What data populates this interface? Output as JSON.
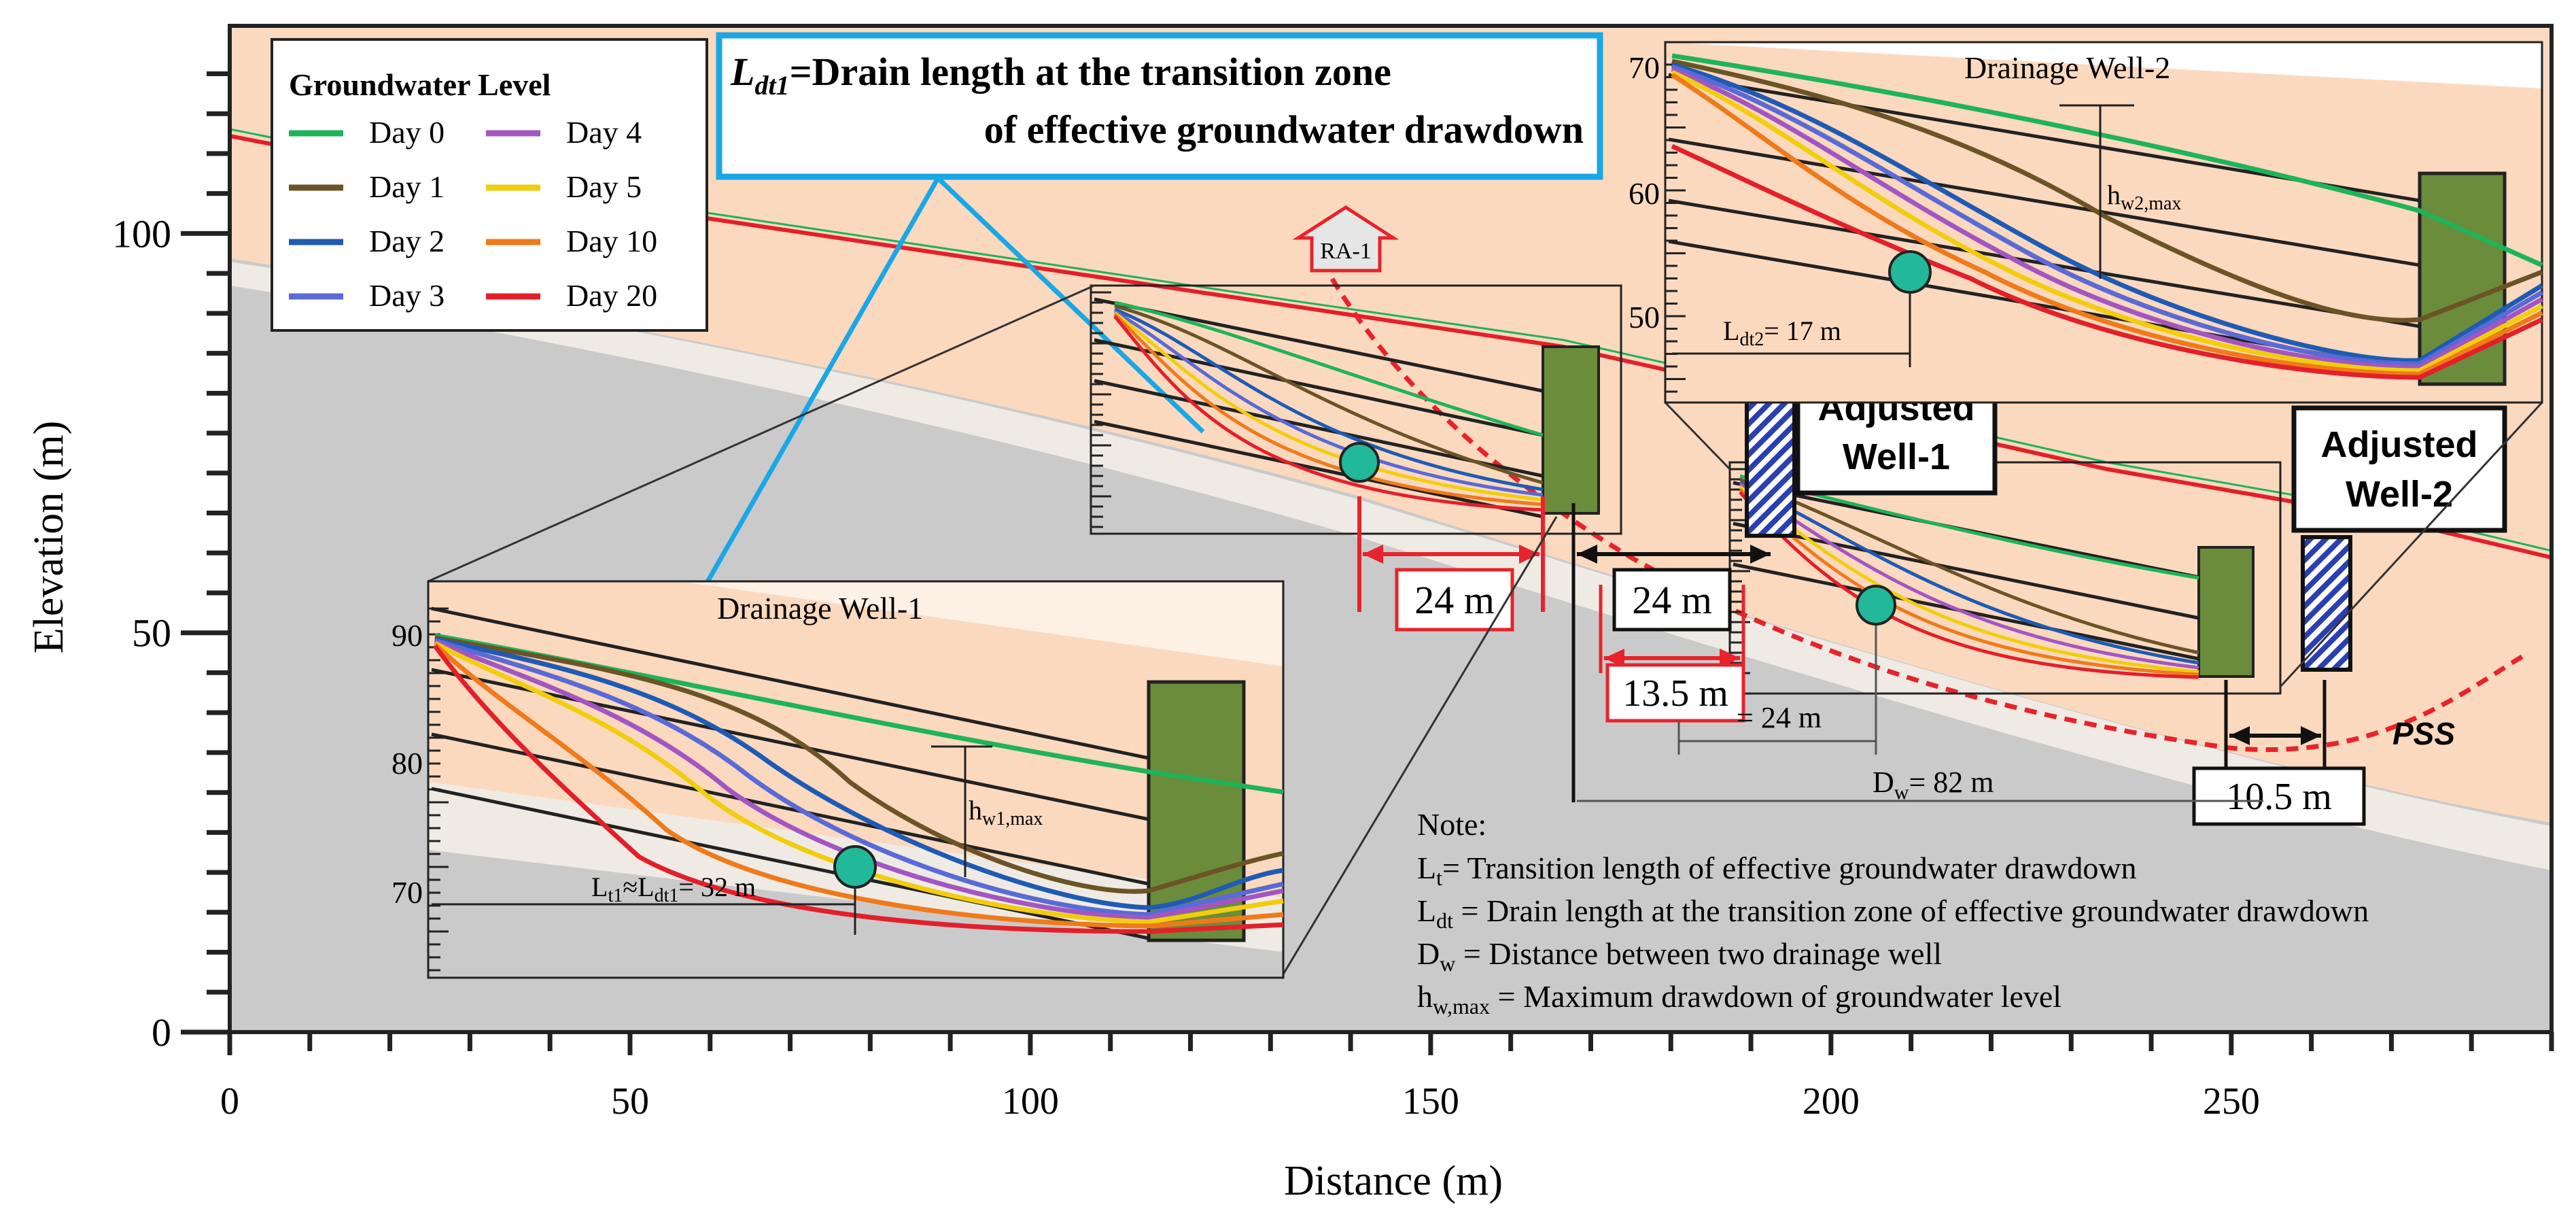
{
  "axes": {
    "xlabel": "Distance (m)",
    "ylabel": "Elevation (m)",
    "xlim": [
      0,
      290
    ],
    "ylim": [
      0,
      126
    ],
    "xticks": [
      "0",
      "50",
      "100",
      "150",
      "200",
      "250"
    ],
    "yticks": [
      "0",
      "50",
      "100"
    ]
  },
  "legend": {
    "title": "Groundwater Level",
    "items": [
      {
        "label": "Day 0",
        "color": "#1fb35a"
      },
      {
        "label": "Day 1",
        "color": "#6b5426"
      },
      {
        "label": "Day 2",
        "color": "#1f5bb5"
      },
      {
        "label": "Day 3",
        "color": "#5a6ad6"
      },
      {
        "label": "Day 4",
        "color": "#a356c2"
      },
      {
        "label": "Day 5",
        "color": "#f2cd0d"
      },
      {
        "label": "Day 10",
        "color": "#f07a1a"
      },
      {
        "label": "Day 20",
        "color": "#e3202a"
      }
    ]
  },
  "callout": {
    "symbol": "L",
    "subscript": "dt1",
    "line1": "=Drain length at the transition zone",
    "line2": "of effective groundwater drawdown"
  },
  "insets": {
    "well1": {
      "title": "Drainage Well-1",
      "yticks": [
        "90",
        "80",
        "70"
      ],
      "h_symbol": "h",
      "h_sub": "w1,max",
      "l_symbol": "L",
      "l_sub1": "t1",
      "l_mid": "≈L",
      "l_sub2": "dt1",
      "l_value": "= 32 m"
    },
    "well2": {
      "title": "Drainage Well-2",
      "yticks": [
        "70",
        "60",
        "50"
      ],
      "h_symbol": "h",
      "h_sub": "w2,max",
      "l_symbol": "L",
      "l_sub": "dt2",
      "l_value": "= 17 m"
    }
  },
  "labels": {
    "ra": "RA-1",
    "pss": "PSS",
    "adjusted1_line1": "Adjusted",
    "adjusted1_line2": "Well-1",
    "adjusted2_line1": "Adjusted",
    "adjusted2_line2": "Well-2",
    "m24_red": "24 m",
    "m24_black": "24 m",
    "m13": "13.5 m",
    "m10": "10.5 m",
    "lt_partial": "= 24 m",
    "dw_symbol": "D",
    "dw_sub": "w",
    "dw_value": "= 82 m"
  },
  "notes": {
    "title": "Note:",
    "items": [
      {
        "sym": "L",
        "sub": "t",
        "text": "= Transition length of effective groundwater drawdown"
      },
      {
        "sym": "L",
        "sub": "dt",
        "text": " = Drain length at the transition zone of effective groundwater drawdown"
      },
      {
        "sym": "D",
        "sub": "w",
        "text": " = Distance between two drainage well"
      },
      {
        "sym": "h",
        "sub": "w,max",
        "text": " = Maximum drawdown of groundwater level"
      }
    ]
  },
  "colors": {
    "soil": "#fbd9bf",
    "rock": "#cbcacb",
    "pale": "#efebe4",
    "well": "#6b8c3a",
    "callout_border": "#19a7e6",
    "red": "#e8232b",
    "marker": "#22b89a"
  }
}
